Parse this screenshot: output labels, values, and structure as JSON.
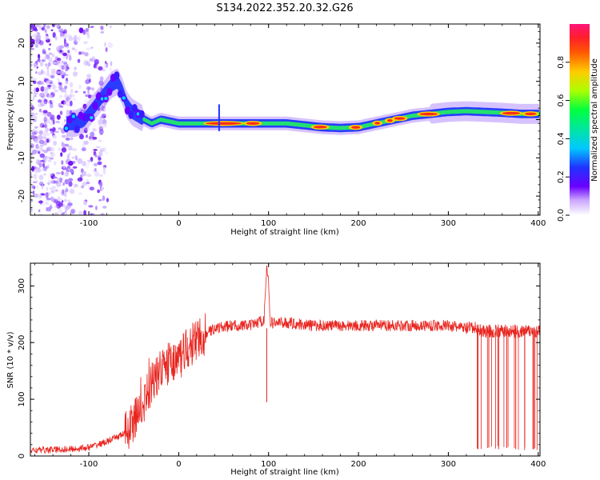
{
  "title": "S134.2022.352.20.32.G26",
  "chart_data": [
    {
      "type": "heatmap",
      "xlabel": "Height of straight line (km)",
      "ylabel": "Frequency (Hz)",
      "xlim": [
        -165,
        402
      ],
      "ylim": [
        -25,
        25
      ],
      "xticks": [
        -100,
        0,
        100,
        200,
        300,
        400
      ],
      "yticks": [
        -20,
        -10,
        0,
        10,
        20
      ],
      "colorbar": {
        "label": "Normalized spectral amplitude",
        "range": [
          0.0,
          1.0
        ],
        "ticks": [
          "0.0",
          "0.2",
          "0.4",
          "0.6",
          "0.8"
        ]
      },
      "ridge": {
        "x": [
          -125,
          -115,
          -105,
          -95,
          -85,
          -75,
          -68,
          -62,
          -58,
          -52,
          -45,
          -38,
          -30,
          -20,
          -10,
          0,
          20,
          40,
          60,
          80,
          100,
          120,
          140,
          160,
          180,
          200,
          220,
          240,
          260,
          280,
          300,
          320,
          340,
          360,
          380,
          400
        ],
        "y": [
          -1,
          -1,
          0,
          3,
          6,
          9,
          10,
          7,
          4,
          2,
          1,
          0,
          -1,
          0,
          -0.5,
          -1,
          -1,
          -1,
          -1,
          -1,
          -1,
          -1,
          -1.5,
          -2,
          -2.2,
          -2,
          -1,
          0,
          1,
          1.5,
          2,
          2.2,
          2,
          1.8,
          1.5,
          1.5
        ]
      }
    },
    {
      "type": "line",
      "xlabel": "Height of straight line (km)",
      "ylabel": "SNR (10 * v/v)",
      "xlim": [
        -165,
        402
      ],
      "ylim": [
        0,
        340
      ],
      "xticks": [
        -100,
        0,
        100,
        200,
        300,
        400
      ],
      "yticks": [
        0,
        100,
        200,
        300
      ],
      "series": [
        {
          "color": "#e8251f",
          "x": [
            -165,
            -120,
            -100,
            -80,
            -60,
            -50,
            -40,
            -30,
            -20,
            -10,
            0,
            10,
            20,
            30,
            40,
            60,
            80,
            95,
            98,
            100,
            102,
            120,
            150,
            200,
            250,
            300,
            320,
            330,
            340,
            360,
            380,
            400,
            402
          ],
          "y": [
            10,
            12,
            15,
            25,
            40,
            60,
            90,
            130,
            150,
            165,
            170,
            190,
            205,
            215,
            225,
            230,
            230,
            240,
            340,
            300,
            235,
            235,
            230,
            230,
            230,
            230,
            225,
            225,
            220,
            220,
            220,
            220,
            220
          ]
        }
      ],
      "spikes_down": [
        {
          "x": 98,
          "y": 95
        },
        {
          "x": 333,
          "y": 12
        },
        {
          "x": 345,
          "y": 15
        },
        {
          "x": 356,
          "y": 12
        },
        {
          "x": 365,
          "y": 14
        },
        {
          "x": 375,
          "y": 12
        },
        {
          "x": 385,
          "y": 15
        },
        {
          "x": 395,
          "y": 12
        }
      ]
    }
  ]
}
